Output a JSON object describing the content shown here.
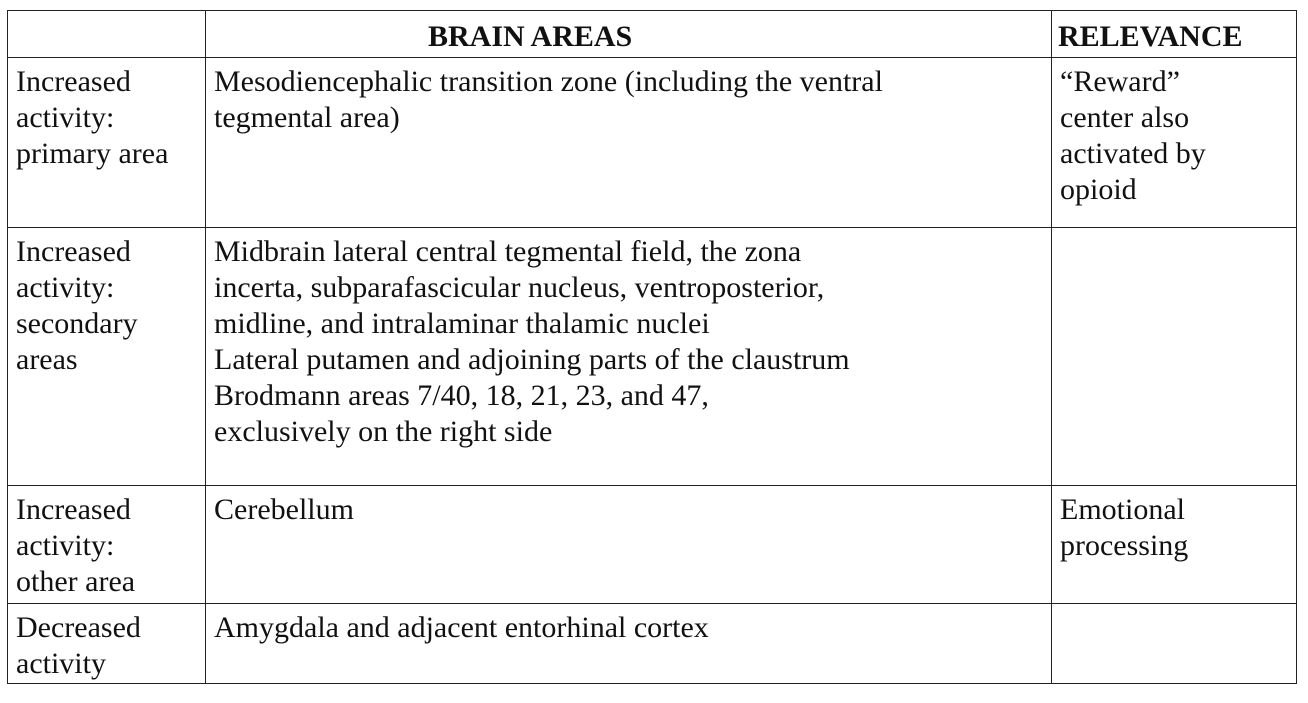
{
  "table": {
    "headers": {
      "label": "",
      "brain_areas": "BRAIN AREAS",
      "relevance": "RELEVANCE"
    },
    "rows": [
      {
        "category": [
          "Increased",
          "activity:",
          "primary area"
        ],
        "areas": [
          "Mesodiencephalic transition zone (including the ventral",
          "tegmental area)"
        ],
        "relevance": [
          "“Reward”",
          "center also",
          "activated by",
          "opioid"
        ]
      },
      {
        "category": [
          "Increased",
          "activity:",
          "secondary",
          "areas"
        ],
        "areas": [
          "Midbrain lateral central tegmental field, the zona",
          "incerta, subparafascicular nucleus, ventroposterior,",
          "midline, and intralaminar thalamic nuclei",
          "Lateral putamen and adjoining parts of the claustrum",
          "Brodmann areas 7/40, 18, 21, 23, and 47,",
          "exclusively on the right side"
        ],
        "relevance": []
      },
      {
        "category": [
          "Increased",
          "activity:",
          "other area"
        ],
        "areas": [
          "Cerebellum"
        ],
        "relevance": [
          "Emotional",
          "processing"
        ]
      },
      {
        "category": [
          "Decreased",
          "activity"
        ],
        "areas": [
          "Amygdala and adjacent entorhinal cortex"
        ],
        "relevance": []
      }
    ]
  }
}
